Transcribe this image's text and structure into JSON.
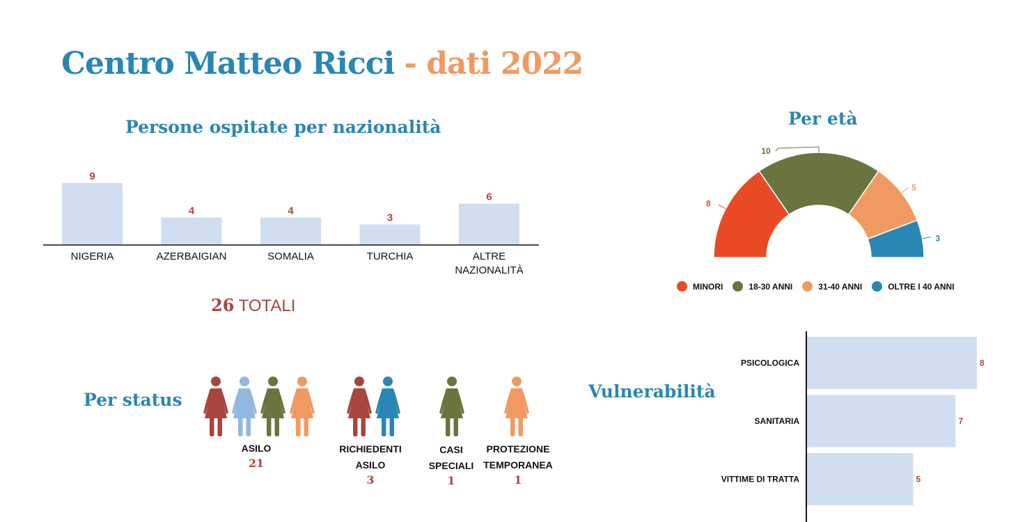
{
  "title": {
    "main": "Centro Matteo Ricci",
    "separator": "-",
    "highlight": "dati 2022"
  },
  "nationality": {
    "title": "Persone ospitate per nazionalità",
    "totals_number": "26",
    "totals_label": "TOTALI"
  },
  "age": {
    "title": "Per età",
    "legend": [
      "MINORI",
      "18-30 ANNI",
      "31-40 ANNI",
      "OLTRE I 40 ANNI"
    ]
  },
  "status": {
    "title": "Per status",
    "groups": [
      {
        "label_line1": "",
        "label_line2": "ASILO",
        "count": "21"
      },
      {
        "label_line1": "RICHIEDENTI",
        "label_line2": "ASILO",
        "count": "3"
      },
      {
        "label_line1": "CASI",
        "label_line2": "SPECIALI",
        "count": "1"
      },
      {
        "label_line1": "PROTEZIONE",
        "label_line2": "TEMPORANEA",
        "count": "1"
      }
    ]
  },
  "vulnerability": {
    "title": "Vulnerabilità"
  },
  "colors": {
    "blue": "#2a86b4",
    "orange": "#f09a62",
    "red": "#e84a26",
    "green": "#6a743e",
    "darkred": "#a8453e",
    "lightblue": "#92b8e0",
    "barfill": "#d0dff0"
  },
  "chart_data": [
    {
      "type": "bar",
      "title": "Persone ospitate per nazionalità",
      "categories": [
        "NIGERIA",
        "AZERBAIGIAN",
        "SOMALIA",
        "TURCHIA",
        "ALTRE NAZIONALITÀ"
      ],
      "values": [
        9,
        4,
        4,
        3,
        6
      ],
      "ylim": [
        0,
        9
      ],
      "grid": false
    },
    {
      "type": "pie",
      "title": "Per età",
      "categories": [
        "MINORI",
        "18-30 ANNI",
        "31-40 ANNI",
        "OLTRE I 40 ANNI"
      ],
      "values": [
        8,
        10,
        5,
        3
      ],
      "colors": [
        "#e84a26",
        "#6a743e",
        "#f09a62",
        "#2a86b4"
      ],
      "legend": "bottom"
    },
    {
      "type": "bar",
      "orientation": "horizontal",
      "title": "Vulnerabilità",
      "categories": [
        "PSICOLOGICA",
        "SANITARIA",
        "VITTIME DI TRATTA"
      ],
      "values": [
        8,
        7,
        5
      ],
      "xlim": [
        0,
        8
      ],
      "grid": false
    }
  ]
}
